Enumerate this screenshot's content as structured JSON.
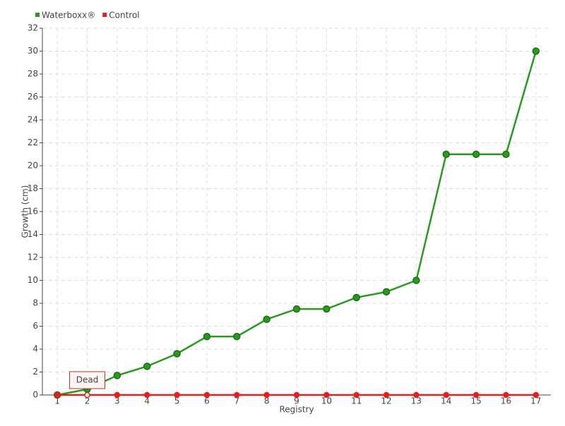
{
  "chart_data": {
    "type": "line",
    "x_label": "Registry",
    "y_label": "Growth (cm)",
    "categories": [
      "1",
      "2",
      "3",
      "4",
      "5",
      "6",
      "7",
      "8",
      "9",
      "10",
      "11",
      "12",
      "13",
      "14",
      "15",
      "16",
      "17"
    ],
    "series": [
      {
        "name": "Waterboxx®",
        "color": "#2a9a1e",
        "values": [
          0,
          0.5,
          1.7,
          2.5,
          3.6,
          5.1,
          5.1,
          6.6,
          7.5,
          7.5,
          8.5,
          9,
          10,
          21,
          21,
          21,
          30
        ]
      },
      {
        "name": "Control",
        "color": "#e02020",
        "values": [
          0,
          0,
          0,
          0,
          0,
          0,
          0,
          0,
          0,
          0,
          0,
          0,
          0,
          0,
          0,
          0,
          0
        ],
        "point_labels": [
          null,
          "Dead",
          null,
          null,
          null,
          null,
          null,
          null,
          null,
          null,
          null,
          null,
          null,
          null,
          null,
          null,
          null
        ]
      }
    ],
    "ylim": [
      0,
      32
    ],
    "yticks": [
      0,
      2,
      4,
      6,
      8,
      10,
      12,
      14,
      16,
      18,
      20,
      22,
      24,
      26,
      28,
      30,
      32
    ],
    "grid": true,
    "legend": "top-left"
  }
}
